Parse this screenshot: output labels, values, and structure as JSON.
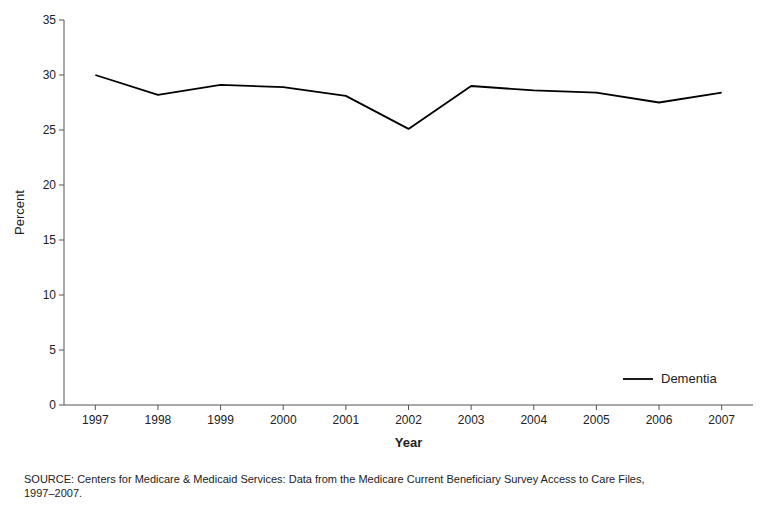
{
  "chart_data": {
    "type": "line",
    "x": [
      1997,
      1998,
      1999,
      2000,
      2001,
      2002,
      2003,
      2004,
      2005,
      2006,
      2007
    ],
    "series": [
      {
        "name": "Dementia",
        "color": "#000000",
        "values": [
          30.0,
          28.2,
          29.1,
          28.9,
          28.1,
          25.1,
          29.0,
          28.6,
          28.4,
          27.5,
          28.4
        ]
      }
    ],
    "xlabel": "Year",
    "ylabel": "Percent",
    "xlim": [
      1996.5,
      2007.5
    ],
    "ylim": [
      0,
      35
    ],
    "xticks": [
      1997,
      1998,
      1999,
      2000,
      2001,
      2002,
      2003,
      2004,
      2005,
      2006,
      2007
    ],
    "yticks": [
      0,
      5,
      10,
      15,
      20,
      25,
      30,
      35
    ],
    "legend": "lower right",
    "grid": false,
    "annotation": "SOURCE: Centers for Medicare & Medicaid Services: Data from the Medicare Current Beneficiary Survey Access to Care Files,\n1997–2007."
  }
}
